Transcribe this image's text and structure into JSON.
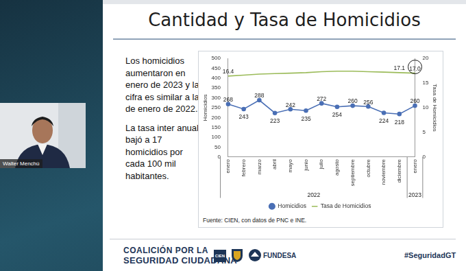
{
  "screen": {
    "participant": "Walter Menchú"
  },
  "slide": {
    "title": "Cantidad y Tasa de Homicidios",
    "text": [
      "Los homicidios aumentaron en enero de 2023 y la cifra es similar a la de enero de 2022.",
      "La tasa inter anual bajó a 17 homicidios por cada 100 mil habitantes."
    ],
    "source": "Fuente: CIEN, con datos de PNC e INE.",
    "footer": {
      "coalition": [
        "COALICIÓN POR LA",
        "SEGURIDAD CIUDADANA"
      ],
      "logos": [
        "CIEN",
        "FUNDESA"
      ],
      "hashtag": "#SeguridadGT"
    }
  },
  "chart_data": {
    "type": "line",
    "categories": [
      "enero",
      "febrero",
      "marzo",
      "abril",
      "mayo",
      "junio",
      "julio",
      "agosto",
      "septiembre",
      "octubre",
      "noviembre",
      "diciembre",
      "enero"
    ],
    "category_groups": [
      {
        "label": "2022",
        "count": 12
      },
      {
        "label": "2023",
        "count": 1
      }
    ],
    "series": [
      {
        "name": "Homicidios",
        "color": "#4a6fb5",
        "marker": "circle",
        "values": [
          268,
          243,
          288,
          223,
          242,
          235,
          272,
          254,
          260,
          256,
          224,
          218,
          260
        ]
      },
      {
        "name": "Tasa de Homicidios",
        "color": "#9bbb59",
        "marker": "none",
        "axis": "y2",
        "values": [
          16.4,
          16.6,
          16.8,
          16.9,
          17.0,
          17.1,
          17.3,
          17.4,
          17.4,
          17.3,
          17.2,
          17.1,
          17.0
        ],
        "value_labels": [
          "16.4",
          null,
          null,
          null,
          null,
          null,
          null,
          null,
          null,
          null,
          null,
          "17.1",
          "17.0"
        ]
      }
    ],
    "y_label": "Homicidios",
    "y2_label": "Tasa de Homicidios",
    "ylim": [
      0,
      500
    ],
    "yticks": [
      0,
      50,
      100,
      150,
      200,
      250,
      300,
      350,
      400,
      450,
      500
    ],
    "y2lim": [
      0,
      20
    ],
    "y2ticks": [
      0,
      5,
      10,
      15,
      20
    ],
    "grid": false,
    "legend": "bottom",
    "data_labels": true
  }
}
